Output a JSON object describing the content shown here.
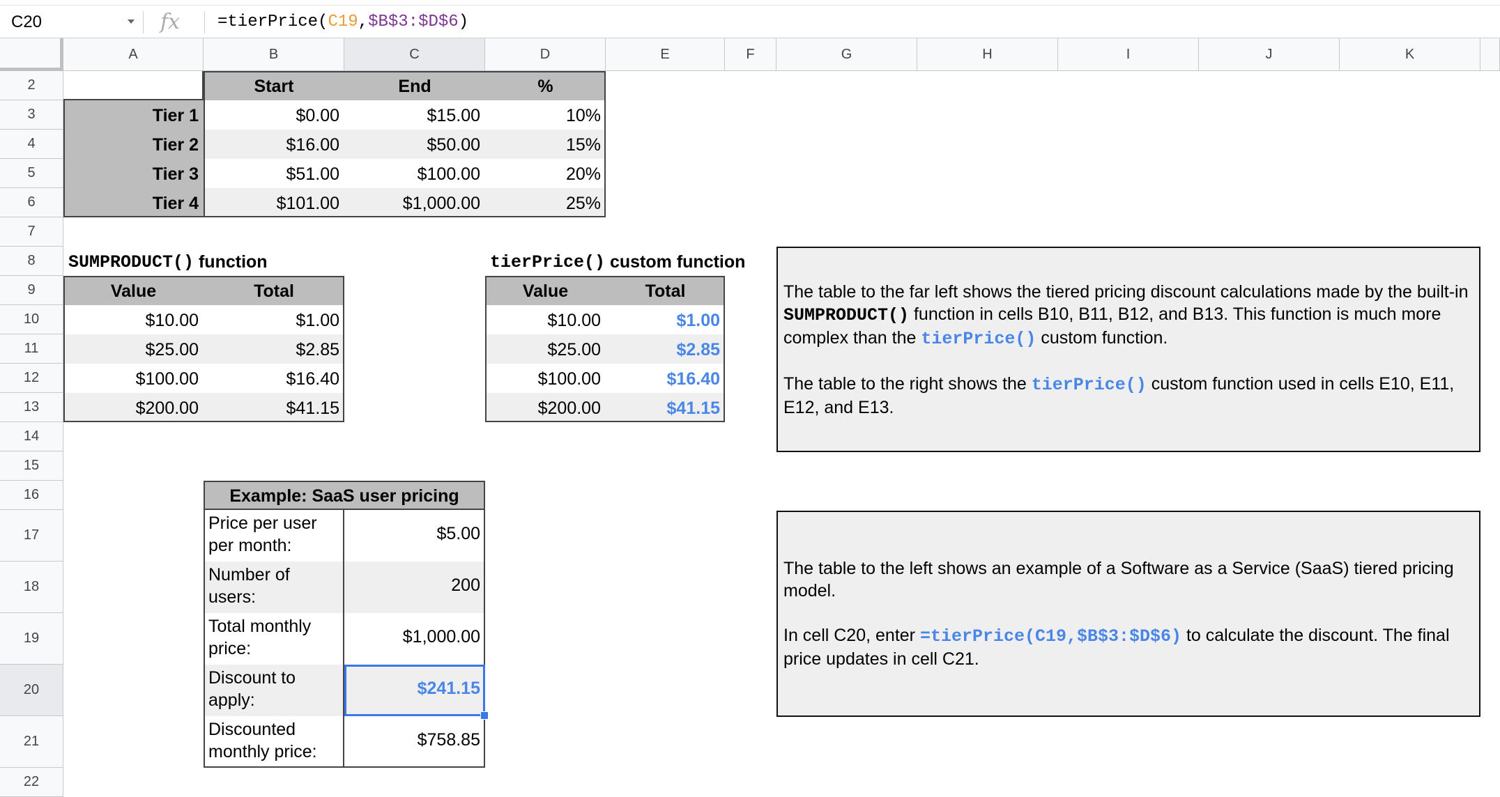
{
  "formula_bar": {
    "cell_ref": "C20",
    "fx_icon": "fx-icon",
    "formula_parts": [
      {
        "text": "=tierPrice(",
        "color": "#000000"
      },
      {
        "text": "C19",
        "color": "#f09a36"
      },
      {
        "text": ",",
        "color": "#000000"
      },
      {
        "text": "$B$3:$D$6",
        "color": "#7e3794"
      },
      {
        "text": ")",
        "color": "#000000"
      }
    ]
  },
  "columns": [
    "A",
    "B",
    "C",
    "D",
    "E",
    "F",
    "G",
    "H",
    "I",
    "J",
    "K"
  ],
  "selected_column": "C",
  "rows": [
    "2",
    "3",
    "4",
    "5",
    "6",
    "7",
    "8",
    "9",
    "10",
    "11",
    "12",
    "13",
    "14",
    "15",
    "16",
    "17",
    "18",
    "19",
    "20",
    "21",
    "22"
  ],
  "selected_row": "20",
  "tier_table": {
    "headers": [
      "",
      "Start",
      "End",
      "%"
    ],
    "rows": [
      [
        "Tier 1",
        "$0.00",
        "$15.00",
        "10%"
      ],
      [
        "Tier 2",
        "$16.00",
        "$50.00",
        "15%"
      ],
      [
        "Tier 3",
        "$51.00",
        "$100.00",
        "20%"
      ],
      [
        "Tier 4",
        "$101.00",
        "$1,000.00",
        "25%"
      ]
    ]
  },
  "sumproduct_table": {
    "title_code": "SUMPRODUCT()",
    "title_text": " function",
    "headers": [
      "Value",
      "Total"
    ],
    "rows": [
      [
        "$10.00",
        "$1.00"
      ],
      [
        "$25.00",
        "$2.85"
      ],
      [
        "$100.00",
        "$16.40"
      ],
      [
        "$200.00",
        "$41.15"
      ]
    ]
  },
  "tierprice_table": {
    "title_code": "tierPrice()",
    "title_text": " custom function",
    "headers": [
      "Value",
      "Total"
    ],
    "rows": [
      [
        "$10.00",
        "$1.00"
      ],
      [
        "$25.00",
        "$2.85"
      ],
      [
        "$100.00",
        "$16.40"
      ],
      [
        "$200.00",
        "$41.15"
      ]
    ]
  },
  "saas_table": {
    "title": "Example: SaaS user pricing",
    "rows": [
      {
        "label": "Price per user per month:",
        "value": "$5.00"
      },
      {
        "label": "Number of users:",
        "value": "200"
      },
      {
        "label": "Total monthly price:",
        "value": "$1,000.00"
      },
      {
        "label": "Discount to apply:",
        "value": "$241.15"
      },
      {
        "label": "Discounted monthly price:",
        "value": "$758.85"
      }
    ]
  },
  "notes": [
    {
      "paragraphs": [
        [
          {
            "text": "The table to the far left shows the tiered pricing discount calculations made by the built-in "
          },
          {
            "text": "SUMPRODUCT()",
            "style": "code"
          },
          {
            "text": " function in cells B10, B11, B12, and B13. This function is much more complex than the "
          },
          {
            "text": "tierPrice()",
            "style": "code-blue"
          },
          {
            "text": " custom function."
          }
        ],
        [
          {
            "text": "The table to the right shows the "
          },
          {
            "text": "tierPrice()",
            "style": "code-blue"
          },
          {
            "text": " custom function used in cells E10, E11, E12, and E13."
          }
        ]
      ]
    },
    {
      "paragraphs": [
        [
          {
            "text": "The table to the left shows an example of a Software as a Service (SaaS) tiered pricing model."
          }
        ],
        [
          {
            "text": "In cell C20, enter "
          },
          {
            "text": "=tierPrice(C19,$B$3:$D$6)",
            "style": "code-blue"
          },
          {
            "text": " to calculate the discount. The final price updates in cell C21."
          }
        ]
      ]
    }
  ],
  "colors": {
    "accent_blue": "#4a86e8",
    "selection": "#3b78e7",
    "header_gray": "#bdbdbd",
    "band_gray": "#efefef"
  }
}
